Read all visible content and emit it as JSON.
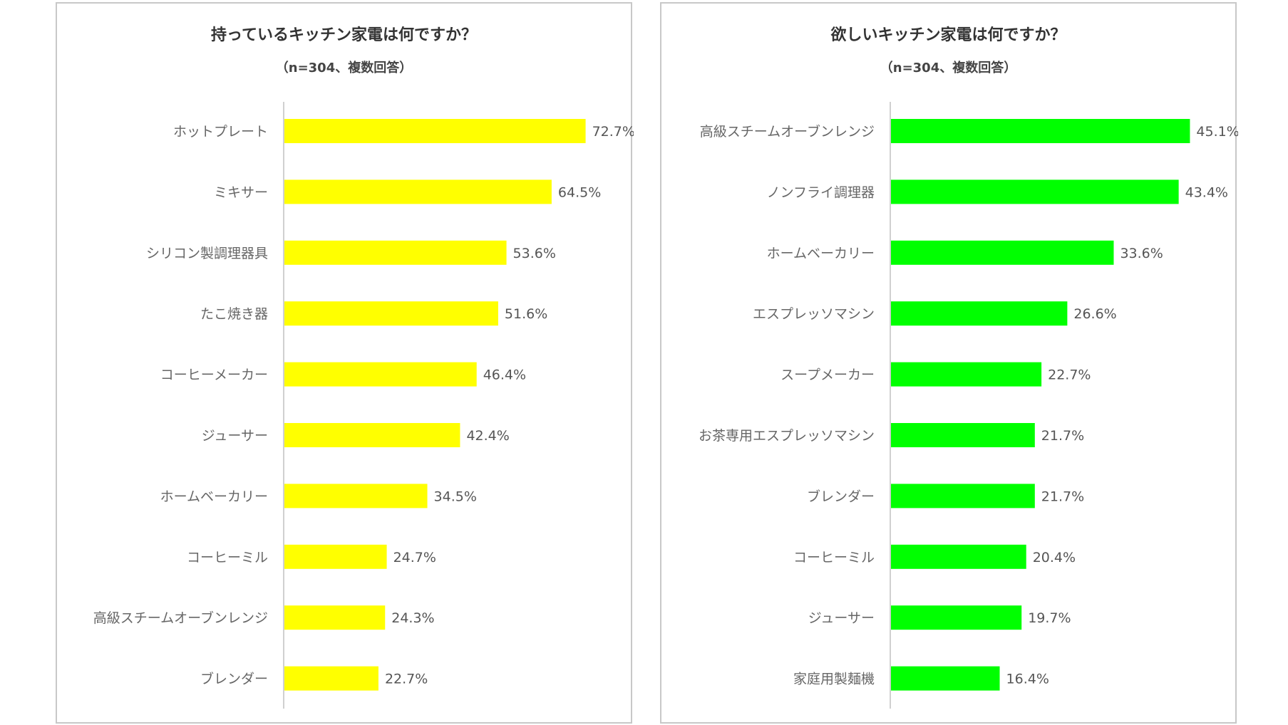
{
  "chart_data": [
    {
      "type": "bar",
      "orientation": "horizontal",
      "title": "持っているキッチン家電は何ですか？",
      "subtitle": "（n=304、複数回答）",
      "categories": [
        "ホットプレート",
        "ミキサー",
        "シリコン製調理器具",
        "たこ焼き器",
        "コーヒーメーカー",
        "ジューサー",
        "ホームベーカリー",
        "コーヒーミル",
        "高級スチームオーブンレンジ",
        "ブレンダー"
      ],
      "values": [
        72.7,
        64.5,
        53.6,
        51.6,
        46.4,
        42.4,
        34.5,
        24.7,
        24.3,
        22.7
      ],
      "labels": [
        "72.7%",
        "64.5%",
        "53.6%",
        "51.6%",
        "46.4%",
        "42.4%",
        "34.5%",
        "24.7%",
        "24.3%",
        "22.7%"
      ],
      "xlim": [
        0,
        80
      ],
      "grid": false,
      "color": "#ffff00"
    },
    {
      "type": "bar",
      "orientation": "horizontal",
      "title": "欲しいキッチン家電は何ですか？",
      "subtitle": "（n=304、複数回答）",
      "categories": [
        "高級スチームオーブンレンジ",
        "ノンフライ調理器",
        "ホームベーカリー",
        "エスプレッソマシン",
        "スープメーカー",
        "お茶専用エスプレッソマシン",
        "ブレンダー",
        "コーヒーミル",
        "ジューサー",
        "家庭用製麺機"
      ],
      "values": [
        45.1,
        43.4,
        33.6,
        26.6,
        22.7,
        21.7,
        21.7,
        20.4,
        19.7,
        16.4
      ],
      "labels": [
        "45.1%",
        "43.4%",
        "33.6%",
        "26.6%",
        "22.7%",
        "21.7%",
        "21.7%",
        "20.4%",
        "19.7%",
        "16.4%"
      ],
      "xlim": [
        0,
        50
      ],
      "grid": false,
      "color": "#00ff00"
    }
  ]
}
